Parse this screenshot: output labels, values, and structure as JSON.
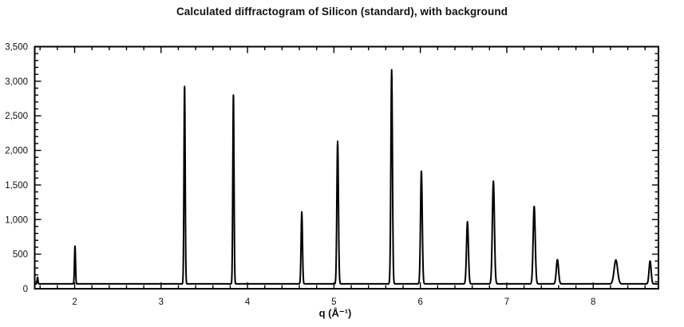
{
  "page": {
    "background_color": "#ffffff",
    "foreground_color": "#111111"
  },
  "chart_data": {
    "type": "line",
    "title": "Calculated diffractogram of Silicon (standard), with background",
    "xlabel": "q (Å⁻¹)",
    "ylabel": "",
    "xlim": [
      1.538,
      8.755
    ],
    "ylim": [
      0,
      3500
    ],
    "x_major_ticks": [
      2,
      3,
      4,
      5,
      6,
      7,
      8
    ],
    "x_tick_labels": [
      "2",
      "3",
      "4",
      "5",
      "6",
      "7",
      "8"
    ],
    "x_minor_tick_interval": 0.2,
    "y_major_ticks": [
      0,
      500,
      1000,
      1500,
      2000,
      2500,
      3000,
      3500
    ],
    "y_tick_labels": [
      "0",
      "500",
      "1,000",
      "1,500",
      "2,000",
      "2,500",
      "3,000",
      "3,500"
    ],
    "y_minor_tick_interval": 100,
    "grid": false,
    "legend": false,
    "ticks_position": "inside-all-four-sides",
    "line_color": "#000000",
    "background_color": "#ffffff",
    "constant_background_level": 70,
    "peaks": [
      {
        "q": 1.571,
        "intensity": 165,
        "width_sigma": 0.005
      },
      {
        "q": 2.004,
        "intensity": 615,
        "width_sigma": 0.006
      },
      {
        "q": 3.272,
        "intensity": 2925,
        "width_sigma": 0.007
      },
      {
        "q": 3.837,
        "intensity": 2800,
        "width_sigma": 0.007
      },
      {
        "q": 4.628,
        "intensity": 1110,
        "width_sigma": 0.008
      },
      {
        "q": 5.043,
        "intensity": 2130,
        "width_sigma": 0.009
      },
      {
        "q": 5.668,
        "intensity": 3165,
        "width_sigma": 0.009
      },
      {
        "q": 6.012,
        "intensity": 1700,
        "width_sigma": 0.01
      },
      {
        "q": 6.545,
        "intensity": 970,
        "width_sigma": 0.011
      },
      {
        "q": 6.845,
        "intensity": 1555,
        "width_sigma": 0.012
      },
      {
        "q": 7.317,
        "intensity": 1190,
        "width_sigma": 0.012
      },
      {
        "q": 7.586,
        "intensity": 420,
        "width_sigma": 0.013
      },
      {
        "q": 8.262,
        "intensity": 415,
        "width_sigma": 0.02
      },
      {
        "q": 8.658,
        "intensity": 400,
        "width_sigma": 0.012
      }
    ]
  }
}
